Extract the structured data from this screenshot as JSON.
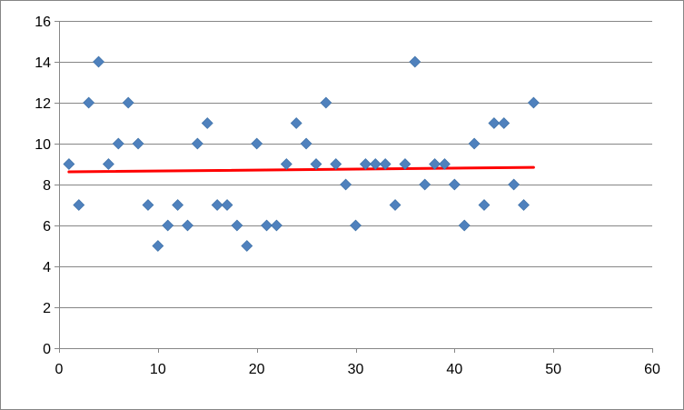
{
  "chart_data": {
    "type": "scatter",
    "title": "",
    "xlabel": "",
    "ylabel": "",
    "xlim": [
      0,
      60
    ],
    "ylim": [
      0,
      16
    ],
    "x_ticks": [
      0,
      10,
      20,
      30,
      40,
      50,
      60
    ],
    "y_ticks": [
      0,
      2,
      4,
      6,
      8,
      10,
      12,
      14,
      16
    ],
    "x_tick_labels": [
      "0",
      "10",
      "20",
      "30",
      "40",
      "50",
      "60"
    ],
    "y_tick_labels": [
      "0",
      "2",
      "4",
      "6",
      "8",
      "10",
      "12",
      "14",
      "16"
    ],
    "grid": {
      "horizontal": true,
      "vertical": false
    },
    "legend": "none",
    "series": [
      {
        "marker": "diamond",
        "color": "#4F81BD",
        "x": [
          1,
          2,
          3,
          4,
          5,
          6,
          7,
          8,
          9,
          10,
          11,
          12,
          13,
          14,
          15,
          16,
          17,
          18,
          19,
          20,
          21,
          22,
          23,
          24,
          25,
          26,
          27,
          28,
          29,
          30,
          31,
          32,
          33,
          34,
          35,
          36,
          37,
          38,
          39,
          40,
          41,
          42,
          43,
          44,
          45,
          46,
          47,
          48
        ],
        "y": [
          9,
          7,
          12,
          14,
          9,
          10,
          12,
          10,
          7,
          5,
          6,
          7,
          6,
          10,
          11,
          7,
          7,
          6,
          5,
          10,
          6,
          6,
          9,
          11,
          10,
          9,
          12,
          9,
          8,
          6,
          9,
          9,
          9,
          7,
          9,
          14,
          8,
          9,
          9,
          8,
          6,
          10,
          7,
          11,
          11,
          8,
          7,
          12
        ]
      }
    ],
    "trendline": {
      "type": "linear",
      "color": "#FF0000",
      "x": [
        1,
        48
      ],
      "y": [
        8.62,
        8.84
      ]
    }
  }
}
